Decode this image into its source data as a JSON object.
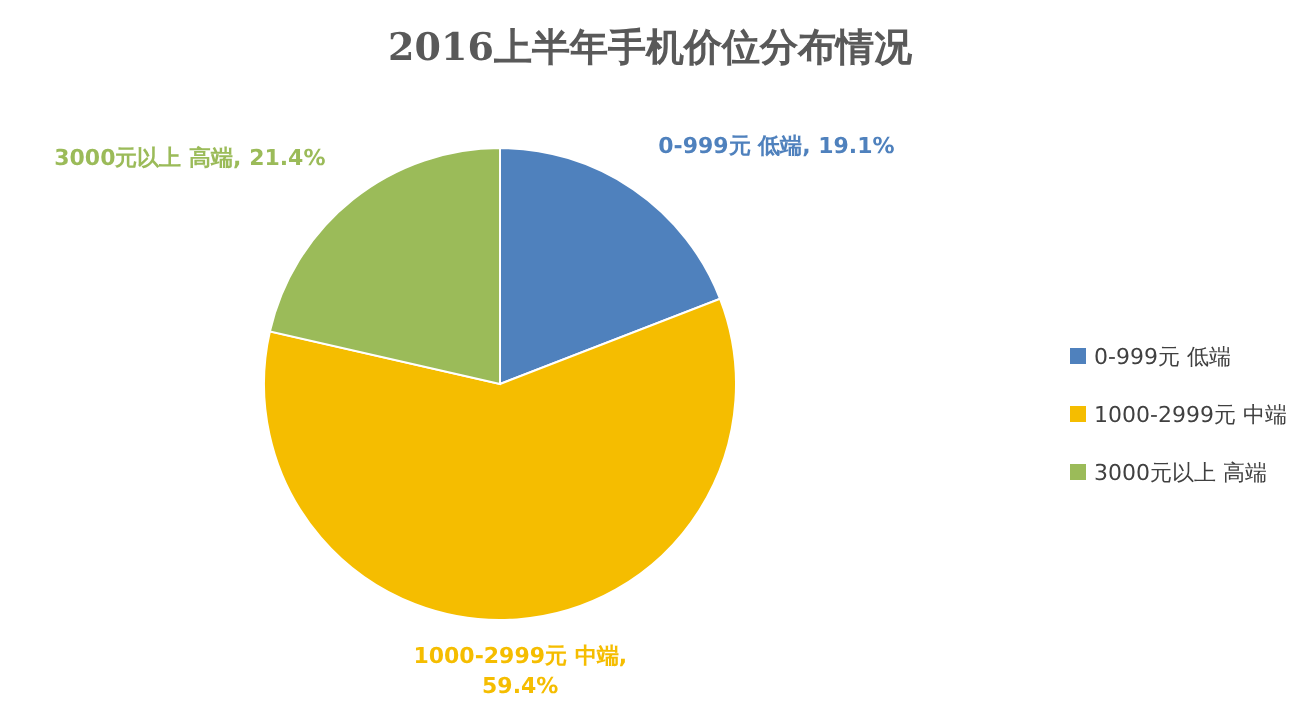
{
  "chart_data": {
    "type": "pie",
    "title": "2016上半年手机价位分布情况",
    "categories": [
      "0-999元 低端",
      "1000-2999元 中端",
      "3000元以上 高端"
    ],
    "values": [
      19.1,
      59.4,
      21.4
    ],
    "colors": [
      "#4f81bd",
      "#f5bd00",
      "#9bbb59"
    ],
    "value_labels": [
      "0-999元 低端, 19.1%",
      "1000-2999元 中端, 59.4%",
      "3000元以上 高端, 21.4%"
    ],
    "legend": "right"
  }
}
